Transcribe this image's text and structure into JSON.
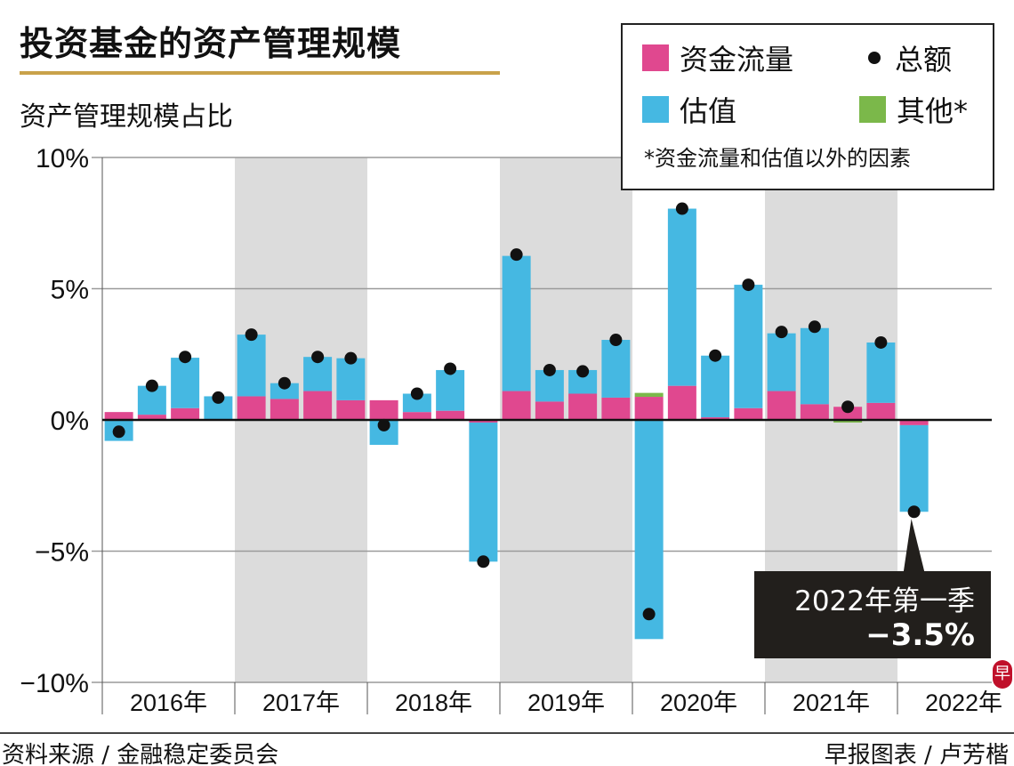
{
  "chart_data": {
    "type": "bar",
    "title": "投资基金的资产管理规模",
    "ylabel": "资产管理规模占比",
    "ylim": [
      -10,
      10
    ],
    "yticks": [
      "10%",
      "5%",
      "0%",
      "−5%",
      "−10%"
    ],
    "ytick_values": [
      10,
      5,
      0,
      -5,
      -10
    ],
    "years": [
      "2016年",
      "2017年",
      "2018年",
      "2019年",
      "2020年",
      "2021年",
      "2022年"
    ],
    "categories": [
      "2016Q1",
      "2016Q2",
      "2016Q3",
      "2016Q4",
      "2017Q1",
      "2017Q2",
      "2017Q3",
      "2017Q4",
      "2018Q1",
      "2018Q2",
      "2018Q3",
      "2018Q4",
      "2019Q1",
      "2019Q2",
      "2019Q3",
      "2019Q4",
      "2020Q1",
      "2020Q2",
      "2020Q3",
      "2020Q4",
      "2021Q1",
      "2021Q2",
      "2021Q3",
      "2021Q4",
      "2022Q1"
    ],
    "series": [
      {
        "name": "资金流量",
        "color": "#e0488f",
        "values": [
          0.3,
          0.2,
          0.45,
          0,
          0.9,
          0.8,
          1.1,
          0.75,
          0.75,
          0.3,
          0.35,
          -0.1,
          1.1,
          0.7,
          1.0,
          0.85,
          0.88,
          1.3,
          0.1,
          0.45,
          1.1,
          0.6,
          0.5,
          0.65,
          -0.2
        ]
      },
      {
        "name": "估值",
        "color": "#45b8e2",
        "values": [
          -0.8,
          1.1,
          1.92,
          0.9,
          2.35,
          0.6,
          1.3,
          1.6,
          -0.95,
          0.7,
          1.55,
          -5.3,
          5.15,
          1.2,
          0.9,
          2.2,
          -8.35,
          6.75,
          2.35,
          4.7,
          2.2,
          2.9,
          0,
          2.3,
          -3.3
        ]
      },
      {
        "name": "其他*",
        "color": "#7bb84a",
        "values": [
          0,
          0,
          0,
          0,
          0,
          0,
          0,
          0,
          0,
          0,
          0,
          0,
          0,
          0,
          0,
          0,
          0.15,
          0,
          0,
          0,
          0,
          0,
          -0.1,
          0,
          0
        ]
      },
      {
        "name": "总额",
        "color": "#111111",
        "values": [
          -0.45,
          1.3,
          2.4,
          0.85,
          3.25,
          1.4,
          2.4,
          2.35,
          -0.2,
          1.0,
          1.95,
          -5.4,
          6.3,
          1.9,
          1.85,
          3.05,
          -7.4,
          8.05,
          2.45,
          5.15,
          3.35,
          3.55,
          0.5,
          2.95,
          -3.5
        ]
      }
    ],
    "legend": {
      "flow": "资金流量",
      "total": "总额",
      "valuation": "估值",
      "other": "其他*",
      "note": "*资金流量和估值以外的因素"
    },
    "annotation": {
      "line1": "2022年第一季",
      "line2": "−3.5%"
    },
    "shaded_years": [
      "2017年",
      "2019年",
      "2021年"
    ],
    "colors": {
      "band": "#dcdcdc",
      "grid": "#9a9a9a",
      "title_rule": "#c9a24a"
    }
  },
  "footer": {
    "source": "资料来源 / 金融稳定委员会",
    "credit": "早报图表 / 卢芳楷",
    "logo": "早"
  }
}
